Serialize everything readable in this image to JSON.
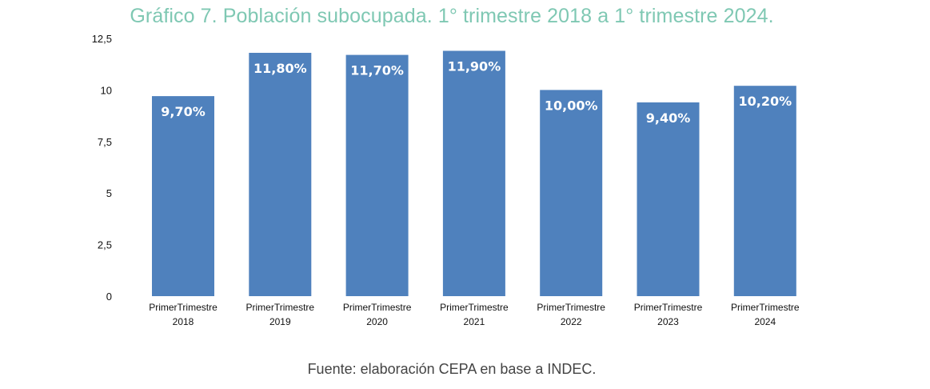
{
  "title": "Gráfico 7. Población subocupada. 1° trimestre 2018 a 1° trimestre 2024.",
  "source": "Fuente: elaboración CEPA en base a INDEC.",
  "colors": {
    "bar": "#4f81bd",
    "title": "#7fc8b3",
    "data_label": "#ffffff"
  },
  "chart_data": {
    "type": "bar",
    "categories": [
      [
        "PrimerTrimestre",
        "2018"
      ],
      [
        "PrimerTrimestre",
        "2019"
      ],
      [
        "PrimerTrimestre",
        "2020"
      ],
      [
        "PrimerTrimestre",
        "2021"
      ],
      [
        "PrimerTrimestre",
        "2022"
      ],
      [
        "PrimerTrimestre",
        "2023"
      ],
      [
        "PrimerTrimestre",
        "2024"
      ]
    ],
    "values": [
      9.7,
      11.8,
      11.7,
      11.9,
      10.0,
      9.4,
      10.2
    ],
    "data_labels": [
      "9,70%",
      "11,80%",
      "11,70%",
      "11,90%",
      "10,00%",
      "9,40%",
      "10,20%"
    ],
    "y_ticks": [
      {
        "value": 0,
        "label": "0"
      },
      {
        "value": 2.5,
        "label": "2,5"
      },
      {
        "value": 5,
        "label": "5"
      },
      {
        "value": 7.5,
        "label": "7,5"
      },
      {
        "value": 10,
        "label": "10"
      },
      {
        "value": 12.5,
        "label": "12,5"
      }
    ],
    "ylim": [
      0,
      12.5
    ],
    "grid": false,
    "legend": "none"
  }
}
